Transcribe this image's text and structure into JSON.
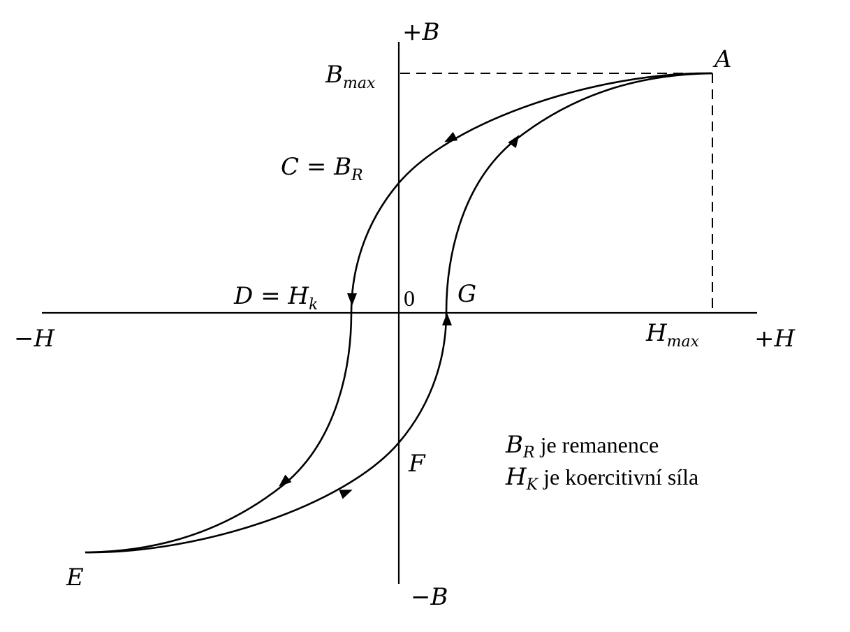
{
  "diagram": {
    "type": "hysteresis-loop",
    "axes": {
      "y_positive": "+B",
      "y_negative": "−B",
      "x_positive": "+H",
      "x_negative": "−H",
      "origin": "0"
    },
    "points": {
      "A": "A",
      "B_max": {
        "base": "B",
        "sub": "max"
      },
      "H_max": {
        "base": "H",
        "sub": "max"
      },
      "C": {
        "pre": "C = B",
        "sub": "R"
      },
      "D": {
        "pre": "D = H",
        "sub": "k"
      },
      "E": "E",
      "F": "F",
      "G": "G"
    },
    "legend": [
      {
        "sym": "B",
        "sub": "R",
        "text": " je remanence"
      },
      {
        "sym": "H",
        "sub": "K",
        "text": " je koercitivní síla"
      }
    ],
    "colors": {
      "line": "#000000",
      "background": "#ffffff"
    }
  }
}
